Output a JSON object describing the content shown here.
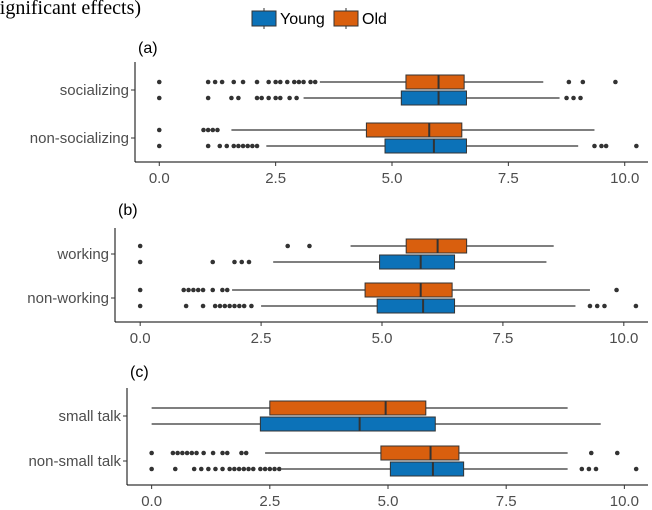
{
  "figure_title_fragment": "significant effects)",
  "legend": {
    "items": [
      {
        "label": "Young",
        "color": "#0c72b8"
      },
      {
        "label": "Old",
        "color": "#d95f0e"
      }
    ]
  },
  "chart_data": [
    {
      "type": "boxplot",
      "panel": "(a)",
      "xlim": [
        -0.5,
        10.5
      ],
      "xticks": [
        "0.0",
        "2.5",
        "5.0",
        "7.5",
        "10.0"
      ],
      "xtick_values": [
        0,
        2.5,
        5,
        7.5,
        10
      ],
      "categories": [
        "socializing",
        "non-socializing"
      ],
      "series": [
        {
          "name": "Old",
          "color": "#d95f0e",
          "boxes": [
            {
              "category": "socializing",
              "whisker_low": 3.45,
              "q1": 5.3,
              "median": 6.0,
              "q3": 6.55,
              "whisker_high": 8.25,
              "outliers": [
                0.0,
                1.05,
                1.2,
                1.35,
                1.6,
                1.8,
                2.1,
                2.35,
                2.5,
                2.6,
                2.75,
                2.9,
                3.0,
                3.1,
                3.25,
                3.35,
                8.8,
                9.1,
                9.8
              ]
            },
            {
              "category": "non-socializing",
              "whisker_low": 1.55,
              "q1": 4.45,
              "median": 5.8,
              "q3": 6.5,
              "whisker_high": 9.35,
              "outliers": [
                0.0,
                0.95,
                1.05,
                1.15,
                1.25
              ]
            }
          ]
        },
        {
          "name": "Young",
          "color": "#0c72b8",
          "boxes": [
            {
              "category": "socializing",
              "whisker_low": 3.1,
              "q1": 5.2,
              "median": 6.0,
              "q3": 6.6,
              "whisker_high": 8.6,
              "outliers": [
                0.0,
                1.05,
                1.55,
                1.7,
                2.1,
                2.2,
                2.35,
                2.5,
                2.6,
                2.8,
                2.95,
                8.75,
                8.9,
                9.05
              ]
            },
            {
              "category": "non-socializing",
              "whisker_low": 2.3,
              "q1": 4.85,
              "median": 5.9,
              "q3": 6.6,
              "whisker_high": 9.0,
              "outliers": [
                0.0,
                1.05,
                1.3,
                1.45,
                1.6,
                1.7,
                1.8,
                1.9,
                2.0,
                2.1,
                9.35,
                9.5,
                9.6,
                10.25
              ]
            }
          ]
        }
      ]
    },
    {
      "type": "boxplot",
      "panel": "(b)",
      "xlim": [
        -0.5,
        10.5
      ],
      "xticks": [
        "0.0",
        "2.5",
        "5.0",
        "7.5",
        "10.0"
      ],
      "xtick_values": [
        0,
        2.5,
        5,
        7.5,
        10
      ],
      "categories": [
        "working",
        "non-working"
      ],
      "series": [
        {
          "name": "Old",
          "color": "#d95f0e",
          "boxes": [
            {
              "category": "working",
              "whisker_low": 4.35,
              "q1": 5.5,
              "median": 6.15,
              "q3": 6.75,
              "whisker_high": 8.55,
              "outliers": [
                0.0,
                3.05,
                3.5
              ]
            },
            {
              "category": "non-working",
              "whisker_low": 1.9,
              "q1": 4.65,
              "median": 5.8,
              "q3": 6.45,
              "whisker_high": 9.3,
              "outliers": [
                0.0,
                0.9,
                1.0,
                1.1,
                1.2,
                1.3,
                1.5,
                1.7,
                1.8,
                9.85
              ]
            }
          ]
        },
        {
          "name": "Young",
          "color": "#0c72b8",
          "boxes": [
            {
              "category": "working",
              "whisker_low": 2.75,
              "q1": 4.95,
              "median": 5.8,
              "q3": 6.5,
              "whisker_high": 8.4,
              "outliers": [
                0.0,
                1.5,
                1.95,
                2.1,
                2.25
              ]
            },
            {
              "category": "non-working",
              "whisker_low": 2.5,
              "q1": 4.9,
              "median": 5.85,
              "q3": 6.5,
              "whisker_high": 9.0,
              "outliers": [
                0.0,
                0.95,
                1.3,
                1.55,
                1.65,
                1.75,
                1.85,
                1.95,
                2.05,
                2.15,
                2.3,
                9.3,
                9.45,
                9.6,
                10.25
              ]
            }
          ]
        }
      ]
    },
    {
      "type": "boxplot",
      "panel": "(c)",
      "xlim": [
        -0.5,
        10.5
      ],
      "xticks": [
        "0.0",
        "2.5",
        "5.0",
        "7.5",
        "10.0"
      ],
      "xtick_values": [
        0,
        2.5,
        5,
        7.5,
        10
      ],
      "categories": [
        "small talk",
        "non-small talk"
      ],
      "series": [
        {
          "name": "Old",
          "color": "#d95f0e",
          "boxes": [
            {
              "category": "small talk",
              "whisker_low": 0.0,
              "q1": 2.5,
              "median": 4.95,
              "q3": 5.8,
              "whisker_high": 8.8,
              "outliers": []
            },
            {
              "category": "non-small talk",
              "whisker_low": 2.4,
              "q1": 4.85,
              "median": 5.9,
              "q3": 6.5,
              "whisker_high": 8.8,
              "outliers": [
                0.0,
                0.45,
                0.55,
                0.65,
                0.75,
                0.85,
                0.95,
                1.1,
                1.3,
                1.5,
                1.6,
                1.9,
                2.0,
                9.3,
                9.85
              ]
            }
          ]
        },
        {
          "name": "Young",
          "color": "#0c72b8",
          "boxes": [
            {
              "category": "small talk",
              "whisker_low": 0.0,
              "q1": 2.3,
              "median": 4.4,
              "q3": 6.0,
              "whisker_high": 9.5,
              "outliers": []
            },
            {
              "category": "non-small talk",
              "whisker_low": 2.75,
              "q1": 5.05,
              "median": 5.95,
              "q3": 6.6,
              "whisker_high": 8.8,
              "outliers": [
                0.0,
                0.5,
                0.9,
                1.05,
                1.2,
                1.35,
                1.5,
                1.65,
                1.75,
                1.85,
                1.95,
                2.05,
                2.15,
                2.3,
                2.4,
                2.5,
                2.6,
                2.7,
                9.1,
                9.25,
                9.4,
                10.25
              ]
            }
          ]
        }
      ]
    }
  ]
}
